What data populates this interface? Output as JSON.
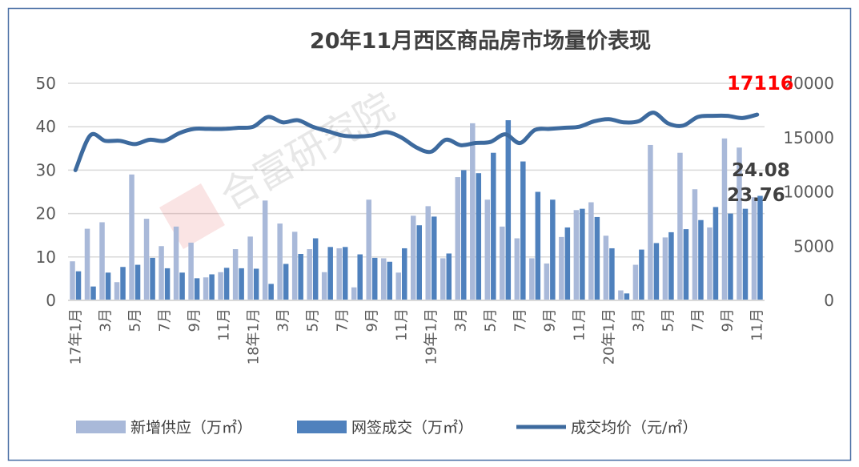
{
  "chart_data": {
    "type": "bar+line",
    "title": "20年11月西区商品房市场量价表现",
    "categories": [
      "17年1月",
      "",
      "3月",
      "",
      "5月",
      "",
      "7月",
      "",
      "9月",
      "",
      "11月",
      "",
      "18年1月",
      "",
      "3月",
      "",
      "5月",
      "",
      "7月",
      "",
      "9月",
      "",
      "11月",
      "",
      "19年1月",
      "",
      "3月",
      "",
      "5月",
      "",
      "7月",
      "",
      "9月",
      "",
      "11月",
      "",
      "20年1月",
      "",
      "3月",
      "",
      "5月",
      "",
      "7月",
      "",
      "9月",
      "",
      "11月"
    ],
    "y_left": {
      "min": 0,
      "max": 50,
      "ticks": [
        0,
        10,
        20,
        30,
        40,
        50
      ]
    },
    "y_right": {
      "min": 0,
      "max": 20000,
      "ticks": [
        0,
        5000,
        10000,
        15000,
        20000
      ]
    },
    "grid": true,
    "legend_position": "bottom",
    "series": [
      {
        "name": "新增供应（万㎡）",
        "type": "bar",
        "axis": "left",
        "color": "#A9B9D9",
        "values": [
          9,
          16.5,
          18,
          4.2,
          29,
          18.8,
          12.5,
          17,
          13.3,
          5.3,
          6.5,
          11.8,
          14.7,
          23,
          17.7,
          15.8,
          11.8,
          6.5,
          12,
          3,
          23.2,
          9.7,
          6.4,
          19.5,
          21.7,
          9.7,
          28.4,
          40.8,
          23.2,
          17,
          14.3,
          9.7,
          8.5,
          14.6,
          20.8,
          22.6,
          14.9,
          2.3,
          8.2,
          35.8,
          14.5,
          34,
          25.6,
          16.8,
          37.3,
          35.2,
          23.76
        ]
      },
      {
        "name": "网签成交（万㎡）",
        "type": "bar",
        "axis": "left",
        "color": "#4F81BD",
        "values": [
          6.7,
          3.2,
          6.4,
          7.7,
          8.2,
          9.8,
          7.4,
          6.4,
          5.1,
          6.0,
          7.5,
          7.4,
          7.3,
          3.8,
          8.4,
          10.7,
          14.3,
          12.3,
          12.3,
          10.6,
          9.8,
          8.9,
          12,
          17.3,
          19.3,
          10.8,
          30,
          29.3,
          34,
          41.5,
          32,
          25,
          23.2,
          16.8,
          21.1,
          19.2,
          12,
          1.6,
          11.7,
          13.2,
          15.7,
          16.4,
          18.5,
          21.5,
          20,
          21.1,
          24.08
        ]
      },
      {
        "name": "成交均价（元/㎡）",
        "type": "line",
        "axis": "right",
        "color": "#3D6A9E",
        "values": [
          12000,
          15200,
          14700,
          14700,
          14400,
          14800,
          14700,
          15400,
          15800,
          15800,
          15800,
          15900,
          16000,
          16900,
          16400,
          16600,
          16000,
          15600,
          15200,
          15100,
          15200,
          15500,
          15000,
          14100,
          13700,
          14800,
          14300,
          14500,
          14600,
          15300,
          14500,
          15700,
          15800,
          15900,
          16000,
          16500,
          16700,
          16400,
          16500,
          17300,
          16300,
          16100,
          16900,
          17000,
          17000,
          16800,
          17116
        ]
      }
    ],
    "annotations": [
      {
        "text": "17116",
        "color": "#FF0000"
      },
      {
        "text": "24.08",
        "color": "#404040"
      },
      {
        "text": "23.76",
        "color": "#404040"
      }
    ],
    "watermark": "合富研究院"
  }
}
